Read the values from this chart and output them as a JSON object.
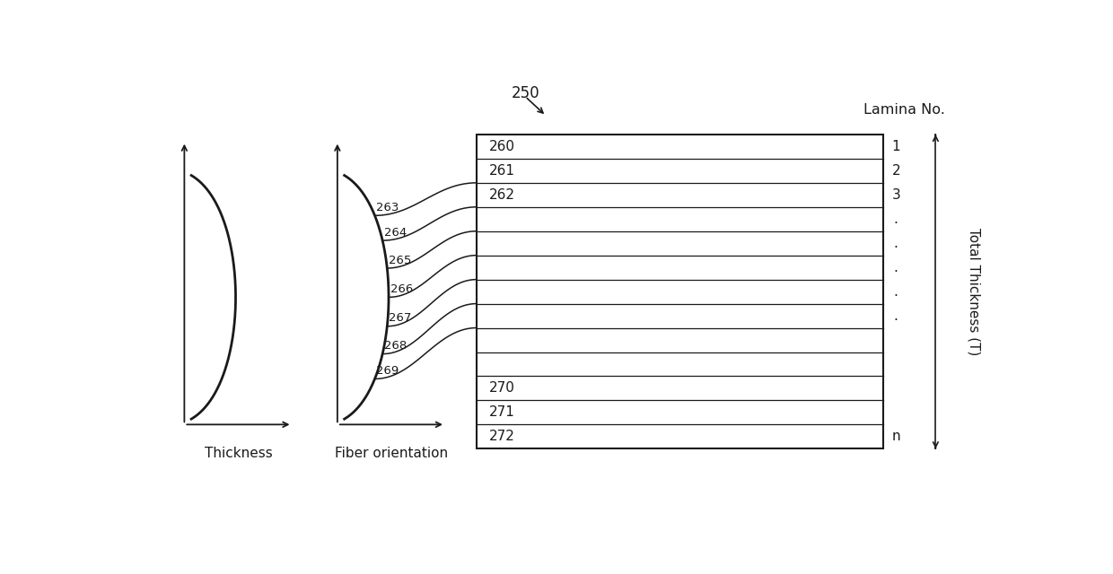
{
  "bg_color": "#ffffff",
  "line_color": "#1a1a1a",
  "fig_label": "250",
  "thickness_label": "Thickness",
  "fiber_label": "Fiber orientation",
  "lamina_label": "Lamina No.",
  "total_thickness_label": "Total Thickness (T)",
  "table_named_rows": {
    "0": "260",
    "1": "261",
    "2": "262",
    "10": "270",
    "11": "271",
    "12": "272"
  },
  "pointer_labels": [
    "263",
    "264",
    "265",
    "266",
    "267",
    "268",
    "269"
  ],
  "lamina_entries": [
    [
      0,
      "1"
    ],
    [
      1,
      "2"
    ],
    [
      2,
      "3"
    ],
    [
      3,
      "."
    ],
    [
      4,
      "."
    ],
    [
      5,
      "."
    ],
    [
      6,
      "."
    ],
    [
      7,
      "."
    ],
    [
      12,
      "n"
    ]
  ],
  "n_rows": 13
}
